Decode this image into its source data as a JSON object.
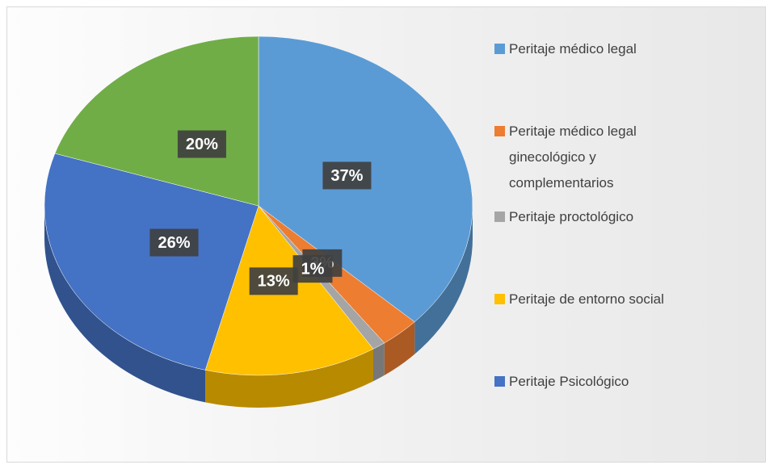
{
  "chart_data": {
    "type": "pie",
    "categories": [
      "Peritaje médico legal",
      "Peritaje médico legal ginecológico y complementarios",
      "Peritaje proctológico",
      "Peritaje de entorno social",
      "Peritaje Psicológico",
      null
    ],
    "values": [
      37,
      3,
      1,
      13,
      26,
      20
    ],
    "value_labels": [
      "37%",
      "3%",
      "1%",
      "13%",
      "26%",
      "20%"
    ],
    "colors": [
      "#5b9bd5",
      "#ed7d31",
      "#a5a5a5",
      "#ffc000",
      "#4472c4",
      "#70ad47"
    ]
  }
}
